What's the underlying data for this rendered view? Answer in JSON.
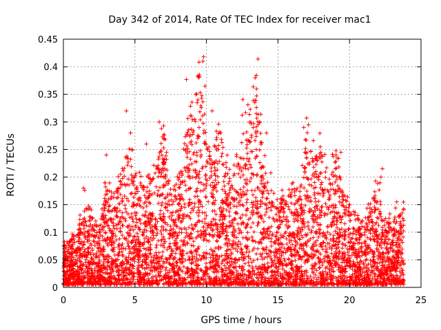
{
  "chart_data": {
    "type": "scatter",
    "title": "Day 342 of 2014, Rate Of TEC Index for receiver mac1",
    "xlabel": "GPS time / hours",
    "ylabel": "ROTI / TECUs",
    "xlim": [
      0,
      25
    ],
    "ylim": [
      0,
      0.45
    ],
    "xticks": [
      0,
      5,
      10,
      15,
      20,
      25
    ],
    "yticks": [
      0,
      0.05,
      0.1,
      0.15,
      0.2,
      0.25,
      0.3,
      0.35,
      0.4,
      0.45
    ],
    "grid": true,
    "marker": "+",
    "color": "#ff0000",
    "series": [
      {
        "name": "ROTI",
        "envelope": {
          "x": [
            0.0,
            0.5,
            1.0,
            1.5,
            2.0,
            2.5,
            3.0,
            3.5,
            4.0,
            4.5,
            5.0,
            5.5,
            6.0,
            6.5,
            7.0,
            7.5,
            8.0,
            8.5,
            9.0,
            9.5,
            10.0,
            10.5,
            11.0,
            11.5,
            12.0,
            12.5,
            13.0,
            13.5,
            14.0,
            14.5,
            15.0,
            15.5,
            16.0,
            16.5,
            17.0,
            17.5,
            18.0,
            18.5,
            19.0,
            19.5,
            20.0,
            20.5,
            21.0,
            21.5,
            22.0,
            22.5,
            23.0,
            23.5
          ],
          "y": [
            0.08,
            0.09,
            0.11,
            0.17,
            0.13,
            0.12,
            0.2,
            0.17,
            0.21,
            0.28,
            0.22,
            0.19,
            0.2,
            0.24,
            0.3,
            0.19,
            0.2,
            0.3,
            0.34,
            0.42,
            0.3,
            0.26,
            0.31,
            0.22,
            0.24,
            0.33,
            0.32,
            0.41,
            0.26,
            0.2,
            0.16,
            0.17,
            0.2,
            0.17,
            0.31,
            0.27,
            0.28,
            0.21,
            0.26,
            0.2,
            0.15,
            0.13,
            0.13,
            0.16,
            0.21,
            0.13,
            0.12,
            0.15
          ]
        },
        "outliers": [
          [
            9.8,
            0.418
          ],
          [
            9.75,
            0.41
          ],
          [
            13.6,
            0.414
          ],
          [
            13.5,
            0.36
          ],
          [
            8.6,
            0.377
          ],
          [
            9.9,
            0.365
          ],
          [
            9.4,
            0.34
          ],
          [
            4.4,
            0.32
          ],
          [
            6.7,
            0.3
          ],
          [
            17.0,
            0.307
          ],
          [
            12.9,
            0.331
          ],
          [
            10.4,
            0.32
          ],
          [
            4.7,
            0.28
          ],
          [
            4.8,
            0.25
          ],
          [
            3.0,
            0.24
          ],
          [
            19.4,
            0.245
          ],
          [
            22.3,
            0.215
          ],
          [
            22.2,
            0.2
          ],
          [
            23.3,
            0.155
          ],
          [
            1.4,
            0.18
          ],
          [
            5.8,
            0.26
          ],
          [
            11.0,
            0.28
          ],
          [
            14.2,
            0.28
          ],
          [
            16.8,
            0.29
          ]
        ]
      }
    ]
  }
}
